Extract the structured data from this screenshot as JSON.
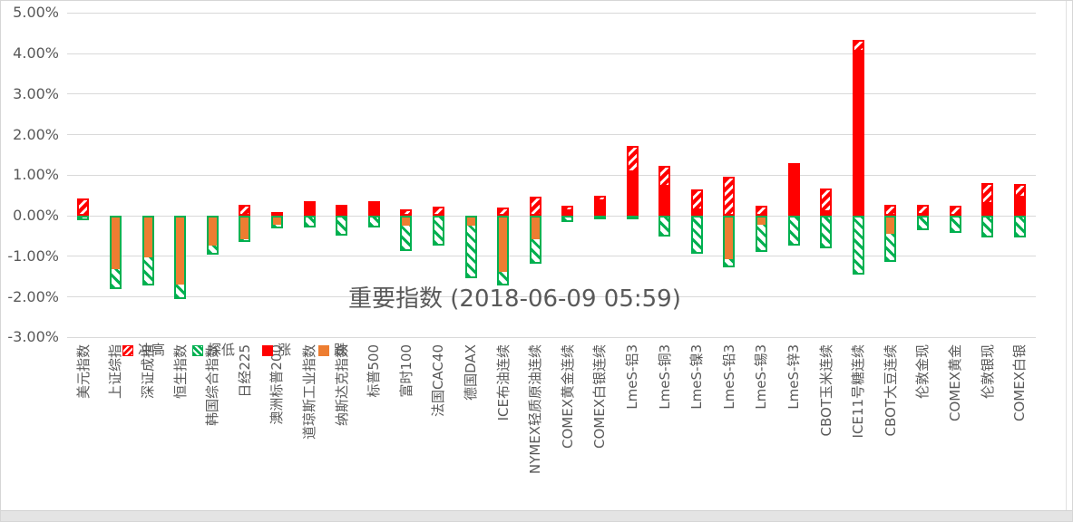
{
  "title": "重要指数 (2018-06-09 05:59)",
  "colors": {
    "up_red": "#FF0000",
    "down_orange": "#ED7D31",
    "low_green": "#00B050",
    "grid_gray": "#D9D9D9",
    "text_gray": "#595959"
  },
  "y_axis": {
    "ticks": [
      {
        "label": "5.00%",
        "value": 5
      },
      {
        "label": "4.00%",
        "value": 4
      },
      {
        "label": "3.00%",
        "value": 3
      },
      {
        "label": "2.00%",
        "value": 2
      },
      {
        "label": "1.00%",
        "value": 1
      },
      {
        "label": "0.00%",
        "value": 0
      },
      {
        "label": "-1.00%",
        "value": -1
      },
      {
        "label": "-2.00%",
        "value": -2
      },
      {
        "label": "-3.00%",
        "value": -3
      }
    ]
  },
  "legend": [
    {
      "label": "冲高",
      "swatch": "hatch-red"
    },
    {
      "label": "探低",
      "swatch": "hatch-green"
    },
    {
      "label": "涨",
      "swatch": "solid-red"
    },
    {
      "label": "跌",
      "swatch": "solid-orange"
    }
  ],
  "chart_data": {
    "type": "bar",
    "title": "重要指数 (2018-06-09 05:59)",
    "ylim": [
      -3,
      5
    ],
    "y_tick_step": 1,
    "y_tick_format": "0.00%",
    "grid": true,
    "legend_position": "bottom, overlapping rotated x labels",
    "x_label_rotation": -90,
    "categories": [
      "美元指数",
      "上证综指",
      "深证成指",
      "恒生指数",
      "韩国综合指数",
      "日经225",
      "澳洲标普200",
      "道琼斯工业指数",
      "纳斯达克指数",
      "标普500",
      "富时100",
      "法国CAC40",
      "德国DAX",
      "ICE布油连续",
      "NYMEX轻质原油连续",
      "COMEX黄金连续",
      "COMEX白银连续",
      "LmeS-铝3",
      "LmeS-铜3",
      "LmeS-镍3",
      "LmeS-铅3",
      "LmeS-锡3",
      "LmeS-锌3",
      "CBOT玉米连续",
      "ICE11号糖连续",
      "CBOT大豆连续",
      "伦敦金现",
      "COMEX黄金",
      "伦敦银现",
      "COMEX白银"
    ],
    "series": [
      {
        "name": "冲高",
        "style": "hatch-red",
        "values": [
          0.42,
          0,
          0,
          0,
          0,
          0.26,
          0.1,
          0.36,
          0.27,
          0.35,
          0.16,
          0.23,
          0,
          0.2,
          0.47,
          0.25,
          0.49,
          1.71,
          1.23,
          0.65,
          0.96,
          0.24,
          1.3,
          0.66,
          4.33,
          0.26,
          0.26,
          0.24,
          0.81,
          0.78
        ]
      },
      {
        "name": "探低",
        "style": "hatch-green",
        "values": [
          -0.11,
          -1.82,
          -1.73,
          -2.05,
          -0.95,
          -0.64,
          -0.32,
          -0.28,
          -0.5,
          -0.28,
          -0.88,
          -0.73,
          -1.55,
          -1.72,
          -1.19,
          -0.16,
          -0.1,
          -0.05,
          -0.52,
          -0.93,
          -1.27,
          -0.9,
          -0.73,
          -0.81,
          -1.45,
          -1.15,
          -0.36,
          -0.43,
          -0.54,
          -0.53
        ]
      },
      {
        "name": "涨",
        "style": "solid-red",
        "values": [
          0,
          0,
          0,
          0,
          0,
          0,
          0,
          0.35,
          0.22,
          0.33,
          0,
          0,
          0,
          0,
          0,
          0.15,
          0.4,
          1.12,
          0.75,
          0.18,
          0,
          0,
          1.28,
          0.13,
          4.1,
          0,
          0.06,
          0.05,
          0.33,
          0.5
        ]
      },
      {
        "name": "跌",
        "style": "solid-orange",
        "values": [
          0,
          -1.34,
          -1.04,
          -1.71,
          -0.76,
          -0.6,
          -0.25,
          0,
          0,
          0,
          -0.27,
          0,
          -0.27,
          -1.4,
          -0.6,
          0,
          0,
          0,
          0,
          0,
          -1.1,
          -0.25,
          0,
          0,
          0,
          -0.48,
          0,
          0,
          0,
          0
        ]
      }
    ]
  }
}
